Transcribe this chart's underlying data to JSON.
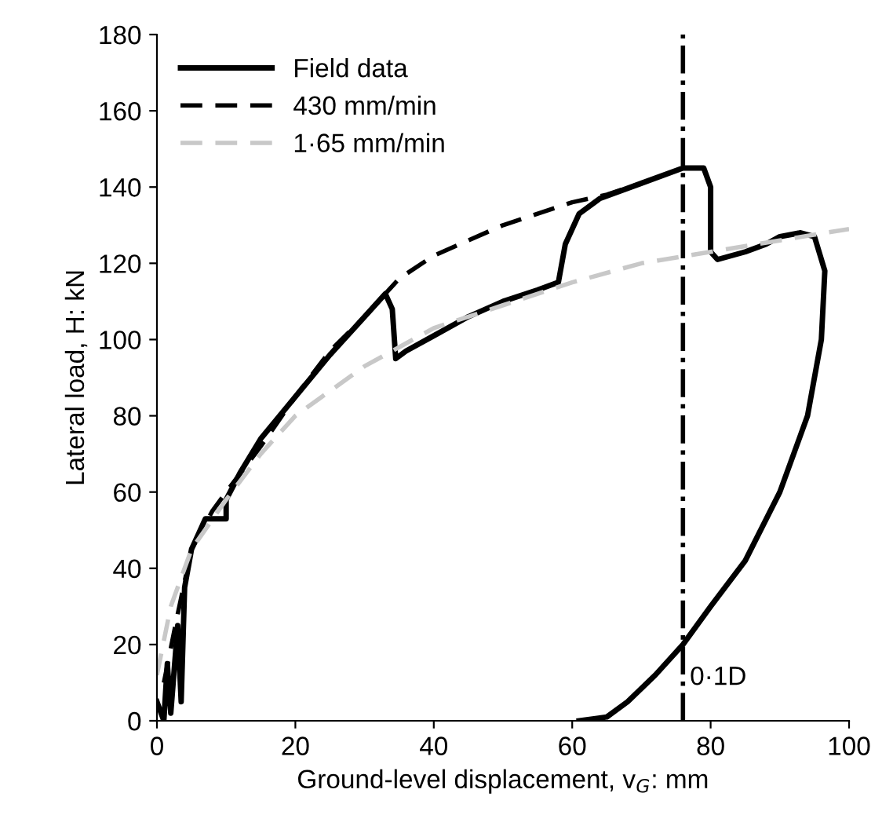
{
  "chart_data": {
    "type": "line",
    "xlabel": "Ground-level displacement, v$_{G}$: mm",
    "ylabel": "Lateral load, H: kN",
    "xlim": [
      0,
      100
    ],
    "ylim": [
      0,
      180
    ],
    "xticks": [
      0,
      20,
      40,
      60,
      80,
      100
    ],
    "yticks": [
      0,
      20,
      40,
      60,
      80,
      100,
      120,
      140,
      160,
      180
    ],
    "grid": false,
    "legend": "top left",
    "marker": "none",
    "series": [
      {
        "name": "Field data",
        "color": "#000000",
        "line_style": "solid",
        "x": [
          0,
          1,
          1.5,
          2,
          3,
          3.5,
          4,
          5,
          7,
          10,
          10,
          12,
          15,
          20,
          25,
          30,
          33,
          34,
          34.5,
          36,
          40,
          45,
          50,
          55,
          58,
          59,
          61,
          64,
          70,
          76,
          79,
          80,
          80,
          81,
          85,
          88,
          90,
          93,
          95,
          96.5,
          96,
          94,
          90,
          85,
          80,
          76,
          72,
          68,
          65,
          61
        ],
        "values": [
          5,
          0,
          15,
          2,
          25,
          5,
          35,
          45,
          53,
          53,
          58,
          65,
          74,
          85,
          96,
          106,
          112,
          108,
          95,
          97,
          101,
          106,
          110,
          113,
          115,
          125,
          133,
          137,
          141,
          145,
          145,
          140,
          123,
          121,
          123,
          125,
          127,
          128,
          127,
          118,
          100,
          80,
          60,
          42,
          30,
          20,
          12,
          5,
          1,
          0
        ]
      },
      {
        "name": "430 mm/min",
        "color": "#000000",
        "line_style": "dashed",
        "x": [
          1,
          3,
          5,
          8,
          10,
          15,
          20,
          25,
          30,
          33,
          35,
          40,
          50,
          60,
          65,
          70
        ],
        "values": [
          10,
          28,
          45,
          55,
          60,
          72,
          85,
          97,
          106,
          112,
          116,
          122,
          130,
          136,
          138,
          141
        ]
      },
      {
        "name": "1·65 mm/min",
        "color": "#c8c8c8",
        "line_style": "dashed",
        "x": [
          0,
          2,
          5,
          10,
          15,
          20,
          30,
          40,
          50,
          60,
          70,
          80,
          90,
          100
        ],
        "values": [
          12,
          30,
          45,
          58,
          70,
          80,
          93,
          103,
          109,
          115,
          120,
          123,
          126,
          129
        ]
      }
    ],
    "ref_lines": [
      {
        "axis": "x",
        "value": 76,
        "label": "0·1D",
        "line_style": "dashdot",
        "color": "#000000"
      }
    ]
  }
}
